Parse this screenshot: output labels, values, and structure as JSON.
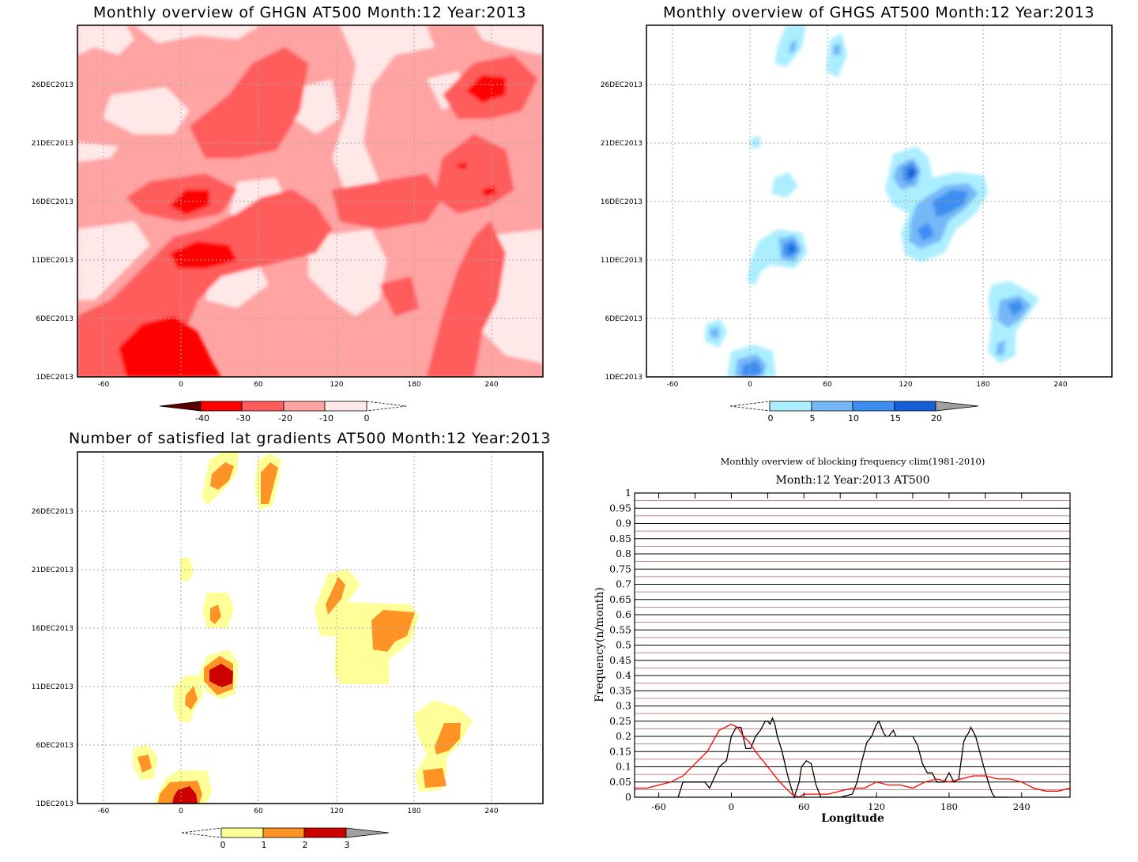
{
  "chart_data": [
    {
      "type": "heatmap",
      "title": "Monthly overview of GHGN AT500 Month:12 Year:2013",
      "x_ticks": [
        "-60",
        "0",
        "60",
        "120",
        "180",
        "240"
      ],
      "x_tick_values": [
        -60,
        0,
        60,
        120,
        180,
        240
      ],
      "xlim": [
        -80,
        280
      ],
      "y_ticks": [
        "1DEC2013",
        "6DEC2013",
        "11DEC2013",
        "16DEC2013",
        "21DEC2013",
        "26DEC2013"
      ],
      "y_tick_values": [
        1,
        6,
        11,
        16,
        21,
        26
      ],
      "ylim": [
        1,
        31
      ],
      "grid": true,
      "colorbar": {
        "labels": [
          "-40",
          "-30",
          "-20",
          "-10",
          "0"
        ],
        "colors": [
          "#5a0000",
          "#ff0000",
          "#ff5c5c",
          "#ffa3a3",
          "#ffe8e8"
        ]
      },
      "colors": {
        "background": "#ffa3a3"
      }
    },
    {
      "type": "heatmap",
      "title": "Monthly overview of GHGS AT500 Month:12 Year:2013",
      "x_ticks": [
        "-60",
        "0",
        "60",
        "120",
        "180",
        "240"
      ],
      "x_tick_values": [
        -60,
        0,
        60,
        120,
        180,
        240
      ],
      "xlim": [
        -80,
        280
      ],
      "y_ticks": [
        "1DEC2013",
        "6DEC2013",
        "11DEC2013",
        "16DEC2013",
        "21DEC2013",
        "26DEC2013"
      ],
      "y_tick_values": [
        1,
        6,
        11,
        16,
        21,
        26
      ],
      "ylim": [
        1,
        31
      ],
      "grid": true,
      "colorbar": {
        "labels": [
          "0",
          "5",
          "10",
          "15",
          "20"
        ],
        "colors": [
          "#aaeeff",
          "#74b8f8",
          "#3c8ef0",
          "#1560d8",
          "#a0a0a0"
        ]
      }
    },
    {
      "type": "heatmap",
      "title": "Number of satisfied lat gradients AT500 Month:12 Year:2013",
      "x_ticks": [
        "-60",
        "0",
        "60",
        "120",
        "180",
        "240"
      ],
      "x_tick_values": [
        -60,
        0,
        60,
        120,
        180,
        240
      ],
      "xlim": [
        -80,
        280
      ],
      "y_ticks": [
        "1DEC2013",
        "6DEC2013",
        "11DEC2013",
        "16DEC2013",
        "21DEC2013",
        "26DEC2013"
      ],
      "y_tick_values": [
        1,
        6,
        11,
        16,
        21,
        26
      ],
      "ylim": [
        1,
        31
      ],
      "grid": true,
      "colorbar": {
        "labels": [
          "0",
          "1",
          "2",
          "3"
        ],
        "colors": [
          "#ffff9a",
          "#ff9326",
          "#cc0000",
          "#a0a0a0"
        ]
      }
    },
    {
      "type": "line",
      "title": "Monthly overview of blocking frequency clim(1981-2010)",
      "subtitle": "Month:12 Year:2013  AT500",
      "xlabel": "Longitude",
      "ylabel": "Frequency(n/month)",
      "x_ticks": [
        "-60",
        "0",
        "60",
        "120",
        "180",
        "240"
      ],
      "x_tick_values": [
        -60,
        0,
        60,
        120,
        180,
        240
      ],
      "xlim": [
        -80,
        280
      ],
      "y_ticks": [
        "0",
        "0.05",
        "0.1",
        "0.15",
        "0.2",
        "0.25",
        "0.3",
        "0.35",
        "0.4",
        "0.45",
        "0.5",
        "0.55",
        "0.6",
        "0.65",
        "0.7",
        "0.75",
        "0.8",
        "0.85",
        "0.9",
        "0.95",
        "1"
      ],
      "ylim": [
        0,
        1
      ],
      "grid": true,
      "series": [
        {
          "color": "#000000",
          "x": [
            -44,
            -40,
            -30,
            -22,
            -18,
            -10,
            -4,
            0,
            4,
            8,
            12,
            16,
            20,
            24,
            28,
            30,
            32,
            34,
            36,
            38,
            42,
            46,
            48,
            52,
            56,
            58,
            62,
            66,
            70,
            74,
            80,
            90,
            100,
            104,
            108,
            112,
            116,
            118,
            120,
            122,
            124,
            126,
            128,
            130,
            132,
            134,
            136,
            140,
            150,
            154,
            158,
            162,
            166,
            170,
            176,
            180,
            184,
            188,
            192,
            194,
            196,
            198,
            202,
            206,
            210,
            214,
            216,
            218,
            220,
            224,
            228
          ],
          "y": [
            0,
            0.05,
            0.05,
            0.05,
            0.03,
            0.1,
            0.12,
            0.2,
            0.23,
            0.23,
            0.16,
            0.16,
            0.2,
            0.22,
            0.25,
            0.25,
            0.24,
            0.26,
            0.24,
            0.2,
            0.15,
            0.08,
            0.05,
            0,
            0.05,
            0.1,
            0.12,
            0.11,
            0.04,
            0,
            0,
            0,
            0.01,
            0.05,
            0.12,
            0.18,
            0.2,
            0.22,
            0.24,
            0.25,
            0.23,
            0.21,
            0.2,
            0.2,
            0.21,
            0.22,
            0.2,
            0.2,
            0.2,
            0.17,
            0.11,
            0.08,
            0.08,
            0.05,
            0.05,
            0.08,
            0.05,
            0.06,
            0.18,
            0.2,
            0.21,
            0.23,
            0.2,
            0.14,
            0.08,
            0.03,
            0.01,
            0,
            0,
            0,
            0
          ]
        },
        {
          "color": "#ff0000",
          "x": [
            -80,
            -70,
            -60,
            -50,
            -40,
            -30,
            -20,
            -10,
            -5,
            0,
            5,
            10,
            15,
            20,
            30,
            40,
            50,
            56,
            60,
            70,
            80,
            90,
            100,
            110,
            120,
            130,
            140,
            150,
            160,
            170,
            180,
            190,
            200,
            210,
            220,
            230,
            240,
            250,
            260,
            270,
            280
          ],
          "y": [
            0.03,
            0.03,
            0.04,
            0.05,
            0.07,
            0.11,
            0.15,
            0.22,
            0.23,
            0.24,
            0.23,
            0.2,
            0.18,
            0.15,
            0.1,
            0.05,
            0.01,
            0,
            0.01,
            0.01,
            0.01,
            0.02,
            0.03,
            0.03,
            0.05,
            0.04,
            0.04,
            0.03,
            0.05,
            0.06,
            0.05,
            0.06,
            0.07,
            0.07,
            0.06,
            0.06,
            0.05,
            0.03,
            0.02,
            0.02,
            0.03
          ]
        }
      ]
    }
  ]
}
